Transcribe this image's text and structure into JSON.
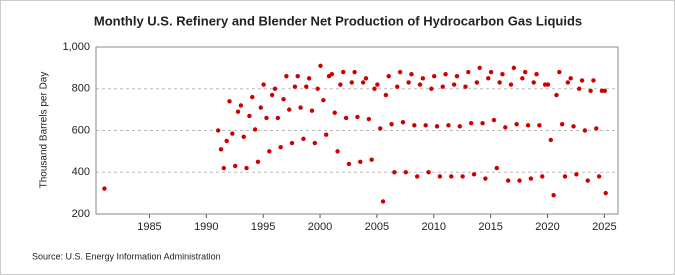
{
  "chart_data": {
    "type": "scatter",
    "title": "Monthly U.S. Refinery and Blender Net Production of Hydrocarbon Gas Liquids",
    "y_label": "Thousand Barrels per Day",
    "source": "Source: U.S. Energy Information Administration",
    "xlim": [
      1980.3,
      2026.2
    ],
    "xticks": [
      1985,
      1990,
      1995,
      2000,
      2005,
      2010,
      2015,
      2020,
      2025
    ],
    "ylim": [
      200,
      1000
    ],
    "yticks": [
      200,
      400,
      600,
      800,
      {
        "value": 1000,
        "label": "1,000"
      }
    ],
    "grid": true,
    "series": [
      {
        "color": "#cc0000",
        "x": [
          1981.04,
          1991.04,
          1991.29,
          1991.54,
          1991.79,
          1992.04,
          1992.29,
          1992.54,
          1992.79,
          1993.04,
          1993.29,
          1993.54,
          1993.79,
          1994.04,
          1994.29,
          1994.54,
          1994.79,
          1995.04,
          1995.29,
          1995.54,
          1995.79,
          1996.04,
          1996.29,
          1996.54,
          1996.79,
          1997.04,
          1997.29,
          1997.54,
          1997.79,
          1998.04,
          1998.29,
          1998.54,
          1998.79,
          1999.04,
          1999.29,
          1999.54,
          1999.79,
          2000.04,
          2000.29,
          2000.54,
          2000.79,
          2001.04,
          2001.29,
          2001.54,
          2001.79,
          2002.04,
          2002.29,
          2002.54,
          2002.79,
          2003.04,
          2003.29,
          2003.54,
          2003.79,
          2004.04,
          2004.29,
          2004.54,
          2004.79,
          2005.04,
          2005.29,
          2005.54,
          2005.79,
          2006.04,
          2006.29,
          2006.54,
          2006.79,
          2007.04,
          2007.29,
          2007.54,
          2007.79,
          2008.04,
          2008.29,
          2008.54,
          2008.79,
          2009.04,
          2009.29,
          2009.54,
          2009.79,
          2010.04,
          2010.29,
          2010.54,
          2010.79,
          2011.04,
          2011.29,
          2011.54,
          2011.79,
          2012.04,
          2012.29,
          2012.54,
          2012.79,
          2013.04,
          2013.29,
          2013.54,
          2013.79,
          2014.04,
          2014.29,
          2014.54,
          2014.79,
          2015.04,
          2015.29,
          2015.54,
          2015.79,
          2016.04,
          2016.29,
          2016.54,
          2016.79,
          2017.04,
          2017.29,
          2017.54,
          2017.79,
          2018.04,
          2018.29,
          2018.54,
          2018.79,
          2019.04,
          2019.29,
          2019.54,
          2019.79,
          2020.04,
          2020.29,
          2020.54,
          2020.79,
          2021.04,
          2021.29,
          2021.54,
          2021.79,
          2022.04,
          2022.29,
          2022.54,
          2022.79,
          2023.04,
          2023.29,
          2023.54,
          2023.79,
          2024.04,
          2024.29,
          2024.54,
          2024.79,
          2025.04,
          2025.12
        ],
        "values": [
          322,
          600,
          510,
          420,
          550,
          740,
          585,
          430,
          690,
          720,
          570,
          420,
          670,
          760,
          605,
          450,
          710,
          820,
          660,
          500,
          770,
          800,
          660,
          520,
          750,
          860,
          700,
          540,
          810,
          860,
          710,
          560,
          810,
          850,
          695,
          540,
          800,
          910,
          745,
          580,
          860,
          870,
          685,
          500,
          820,
          880,
          660,
          440,
          830,
          880,
          665,
          450,
          830,
          850,
          655,
          460,
          800,
          820,
          610,
          260,
          770,
          860,
          630,
          400,
          810,
          880,
          640,
          400,
          830,
          870,
          625,
          380,
          820,
          850,
          625,
          400,
          800,
          860,
          620,
          380,
          810,
          870,
          625,
          380,
          820,
          860,
          620,
          380,
          810,
          880,
          635,
          390,
          830,
          900,
          635,
          370,
          850,
          880,
          650,
          420,
          830,
          870,
          615,
          360,
          820,
          900,
          630,
          360,
          850,
          880,
          625,
          370,
          830,
          870,
          625,
          380,
          820,
          820,
          555,
          290,
          770,
          880,
          630,
          380,
          830,
          850,
          620,
          390,
          800,
          840,
          600,
          360,
          790,
          840,
          610,
          380,
          790,
          790,
          300
        ]
      }
    ]
  }
}
